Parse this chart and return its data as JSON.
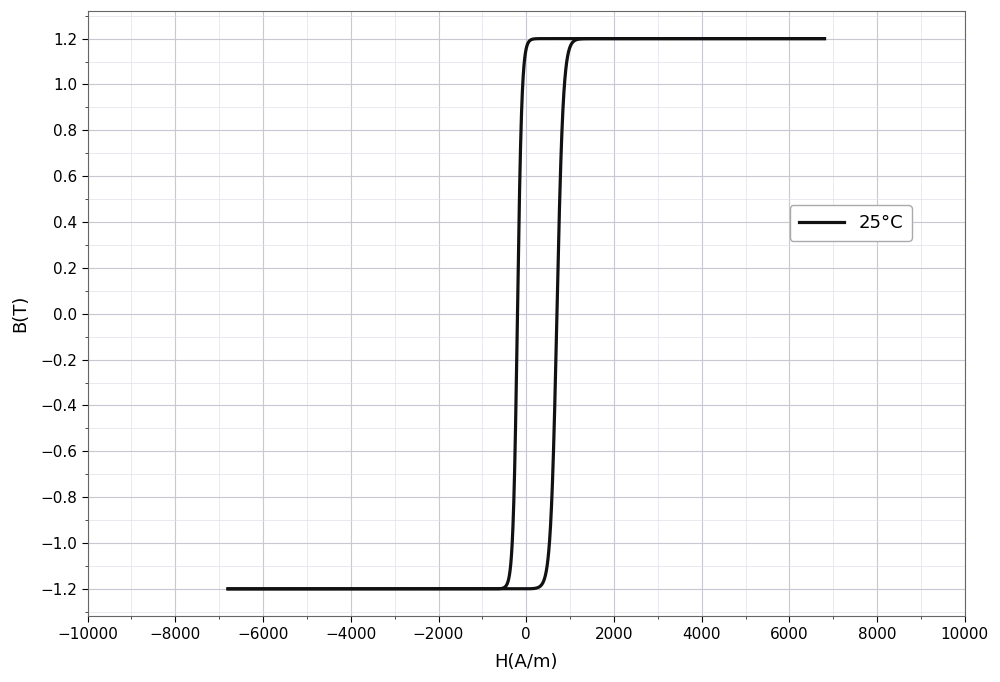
{
  "title": "",
  "xlabel": "H(A/m)",
  "ylabel": "B(T)",
  "xlim": [
    -10000,
    10000
  ],
  "ylim": [
    -1.32,
    1.32
  ],
  "xticks": [
    -10000,
    -8000,
    -6000,
    -4000,
    -2000,
    0,
    2000,
    4000,
    6000,
    8000,
    10000
  ],
  "yticks": [
    -1.2,
    -1.0,
    -0.8,
    -0.6,
    -0.4,
    -0.2,
    0.0,
    0.2,
    0.4,
    0.6,
    0.8,
    1.0,
    1.2
  ],
  "line_color": "#111111",
  "line_width": 2.3,
  "legend_label": "25°C",
  "Bs": 1.2,
  "Br": 1.13,
  "Hc1": 200,
  "Hc2": 700,
  "k1": 0.012,
  "k2": 0.0045,
  "H_start": -6800,
  "H_end": 6800,
  "background_color": "#ffffff",
  "grid_major_color": "#c8c8d4",
  "grid_minor_color": "#e0e0ea",
  "font_size": 13,
  "tick_fontsize": 11,
  "legend_fontsize": 13
}
